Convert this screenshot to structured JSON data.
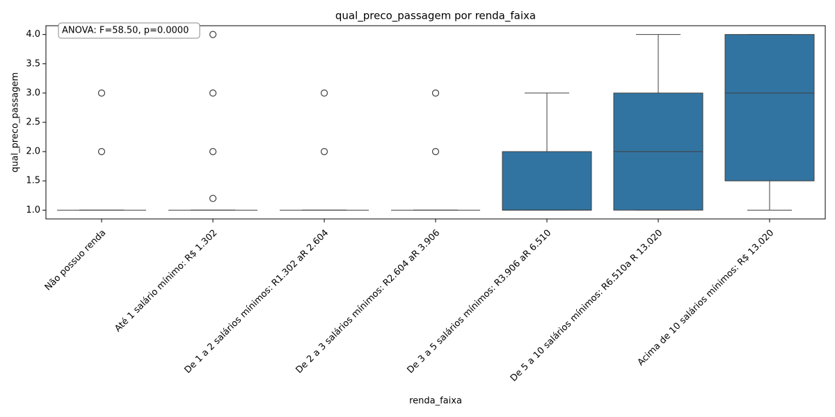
{
  "chart_data": {
    "type": "box",
    "title": "qual_preco_passagem por renda_faixa",
    "x_label": "renda_faixa",
    "y_label": "qual_preco_passagem",
    "annotation": "ANOVA: F=58.50, p=0.0000",
    "categories": [
      "Não possuo renda",
      "Até 1 salário mínimo:  R$ 1.302",
      "De 1 a 2 salários mínimos: R1.302 aR 2.604",
      "De 2 a 3 salários mínimos: R2.604 aR 3.906",
      "De 3 a 5 salários mínimos: R3.906 aR 6.510",
      "De 5 a 10 salários mínimos: R6.510a R 13.020",
      "Acima de 10 salários mínimos:  R$ 13.020"
    ],
    "color": "#3274a1",
    "boxes": [
      {
        "min": 1,
        "q1": 1,
        "median": 1,
        "q3": 1,
        "max": 1,
        "outliers": [
          2,
          3
        ]
      },
      {
        "min": 1,
        "q1": 1,
        "median": 1,
        "q3": 1,
        "max": 1,
        "outliers": [
          1.2,
          2,
          3,
          4
        ]
      },
      {
        "min": 1,
        "q1": 1,
        "median": 1,
        "q3": 1,
        "max": 1,
        "outliers": [
          2,
          3
        ]
      },
      {
        "min": 1,
        "q1": 1,
        "median": 1,
        "q3": 1,
        "max": 1,
        "outliers": [
          2,
          3
        ]
      },
      {
        "min": 1,
        "q1": 1,
        "median": 1,
        "q3": 2,
        "max": 3,
        "outliers": []
      },
      {
        "min": 1,
        "q1": 1,
        "median": 2,
        "q3": 3,
        "max": 4,
        "outliers": []
      },
      {
        "min": 1,
        "q1": 1.5,
        "median": 3,
        "q3": 4,
        "max": 4,
        "outliers": []
      }
    ],
    "ylim": [
      0.85,
      4.15
    ],
    "yticks": [
      {
        "value": 1,
        "label": "1.0"
      },
      {
        "value": 1.5,
        "label": "1.5"
      },
      {
        "value": 2,
        "label": "2.0"
      },
      {
        "value": 2.5,
        "label": "2.5"
      },
      {
        "value": 3,
        "label": "3.0"
      },
      {
        "value": 3.5,
        "label": "3.5"
      },
      {
        "value": 4,
        "label": "4.0"
      }
    ]
  }
}
